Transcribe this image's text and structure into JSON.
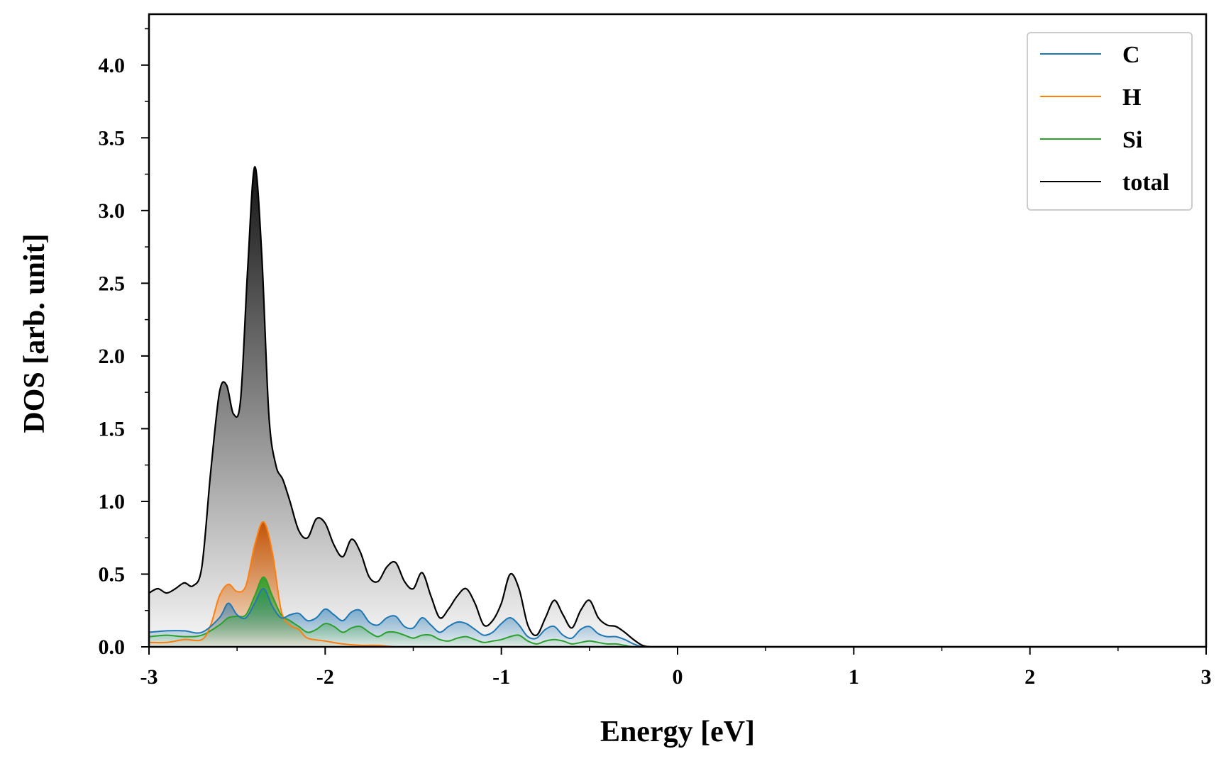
{
  "chart_data": {
    "type": "area",
    "title": "",
    "xlabel": "Energy [eV]",
    "ylabel": "DOS [arb. unit]",
    "xlim": [
      -3,
      3
    ],
    "ylim": [
      0,
      4.35
    ],
    "xticks": [
      -3,
      -2,
      -1,
      0,
      1,
      2,
      3
    ],
    "xtick_labels": [
      "-3",
      "-2",
      "-1",
      "0",
      "1",
      "2",
      "3"
    ],
    "yticks": [
      0.0,
      0.5,
      1.0,
      1.5,
      2.0,
      2.5,
      3.0,
      3.5,
      4.0
    ],
    "ytick_labels": [
      "0.0",
      "0.5",
      "1.0",
      "1.5",
      "2.0",
      "2.5",
      "3.0",
      "3.5",
      "4.0"
    ],
    "grid": false,
    "legend_position": "top-right",
    "colors": {
      "C": "#1f77b4",
      "H": "#ff7f0e",
      "Si": "#2ca02c",
      "total": "#000000"
    },
    "series": [
      {
        "name": "total",
        "x": [
          -3.0,
          -2.95,
          -2.9,
          -2.85,
          -2.8,
          -2.75,
          -2.7,
          -2.65,
          -2.6,
          -2.56,
          -2.52,
          -2.48,
          -2.44,
          -2.4,
          -2.36,
          -2.32,
          -2.28,
          -2.24,
          -2.2,
          -2.15,
          -2.1,
          -2.05,
          -2.0,
          -1.95,
          -1.9,
          -1.85,
          -1.8,
          -1.75,
          -1.7,
          -1.65,
          -1.6,
          -1.55,
          -1.5,
          -1.45,
          -1.4,
          -1.35,
          -1.3,
          -1.25,
          -1.2,
          -1.15,
          -1.1,
          -1.05,
          -1.0,
          -0.95,
          -0.9,
          -0.85,
          -0.8,
          -0.75,
          -0.7,
          -0.65,
          -0.6,
          -0.55,
          -0.5,
          -0.45,
          -0.4,
          -0.35,
          -0.3,
          -0.25,
          -0.2,
          -0.15,
          -0.1,
          0.0,
          1.0,
          3.0
        ],
        "values": [
          0.37,
          0.4,
          0.37,
          0.4,
          0.44,
          0.42,
          0.55,
          1.2,
          1.75,
          1.8,
          1.6,
          1.7,
          2.6,
          3.3,
          2.7,
          1.6,
          1.25,
          1.15,
          1.0,
          0.8,
          0.75,
          0.88,
          0.85,
          0.7,
          0.62,
          0.74,
          0.65,
          0.48,
          0.45,
          0.55,
          0.58,
          0.45,
          0.4,
          0.51,
          0.35,
          0.2,
          0.26,
          0.35,
          0.4,
          0.3,
          0.15,
          0.18,
          0.3,
          0.5,
          0.4,
          0.15,
          0.08,
          0.2,
          0.32,
          0.22,
          0.13,
          0.25,
          0.32,
          0.2,
          0.15,
          0.14,
          0.1,
          0.05,
          0.01,
          0.0,
          0.0,
          0.0,
          0.0,
          0.0
        ]
      },
      {
        "name": "C",
        "x": [
          -3.0,
          -2.9,
          -2.8,
          -2.7,
          -2.6,
          -2.55,
          -2.5,
          -2.45,
          -2.4,
          -2.35,
          -2.3,
          -2.25,
          -2.2,
          -2.15,
          -2.1,
          -2.05,
          -2.0,
          -1.95,
          -1.9,
          -1.85,
          -1.8,
          -1.75,
          -1.7,
          -1.65,
          -1.6,
          -1.55,
          -1.5,
          -1.45,
          -1.4,
          -1.35,
          -1.3,
          -1.25,
          -1.2,
          -1.15,
          -1.1,
          -1.05,
          -1.0,
          -0.95,
          -0.9,
          -0.85,
          -0.8,
          -0.75,
          -0.7,
          -0.65,
          -0.6,
          -0.55,
          -0.5,
          -0.45,
          -0.4,
          -0.35,
          -0.3,
          -0.25,
          -0.2,
          -0.15,
          -0.1,
          0.0,
          3.0
        ],
        "values": [
          0.1,
          0.11,
          0.11,
          0.1,
          0.2,
          0.3,
          0.22,
          0.2,
          0.3,
          0.4,
          0.28,
          0.2,
          0.22,
          0.23,
          0.18,
          0.2,
          0.26,
          0.22,
          0.18,
          0.24,
          0.25,
          0.17,
          0.15,
          0.2,
          0.21,
          0.14,
          0.13,
          0.2,
          0.15,
          0.1,
          0.14,
          0.17,
          0.16,
          0.12,
          0.08,
          0.1,
          0.16,
          0.2,
          0.15,
          0.07,
          0.06,
          0.12,
          0.14,
          0.08,
          0.06,
          0.12,
          0.14,
          0.09,
          0.07,
          0.07,
          0.05,
          0.02,
          0.0,
          0.0,
          0.0,
          0.0,
          0.0
        ]
      },
      {
        "name": "H",
        "x": [
          -3.0,
          -2.9,
          -2.8,
          -2.7,
          -2.65,
          -2.6,
          -2.55,
          -2.5,
          -2.45,
          -2.4,
          -2.35,
          -2.3,
          -2.25,
          -2.2,
          -2.15,
          -2.1,
          -2.0,
          -1.9,
          -1.8,
          -1.7,
          -1.6,
          -1.5,
          -1.0,
          3.0
        ],
        "values": [
          0.03,
          0.03,
          0.05,
          0.05,
          0.15,
          0.35,
          0.43,
          0.38,
          0.42,
          0.7,
          0.86,
          0.65,
          0.25,
          0.15,
          0.12,
          0.06,
          0.04,
          0.02,
          0.01,
          0.01,
          0.0,
          0.0,
          0.0,
          0.0
        ]
      },
      {
        "name": "Si",
        "x": [
          -3.0,
          -2.9,
          -2.8,
          -2.7,
          -2.6,
          -2.55,
          -2.5,
          -2.45,
          -2.4,
          -2.35,
          -2.3,
          -2.25,
          -2.2,
          -2.15,
          -2.1,
          -2.05,
          -2.0,
          -1.95,
          -1.9,
          -1.85,
          -1.8,
          -1.75,
          -1.7,
          -1.65,
          -1.6,
          -1.55,
          -1.5,
          -1.45,
          -1.4,
          -1.35,
          -1.3,
          -1.25,
          -1.2,
          -1.15,
          -1.1,
          -1.05,
          -1.0,
          -0.95,
          -0.9,
          -0.85,
          -0.8,
          -0.75,
          -0.7,
          -0.65,
          -0.6,
          -0.55,
          -0.5,
          -0.45,
          -0.4,
          -0.35,
          -0.3,
          -0.25,
          -0.2,
          0.0,
          3.0
        ],
        "values": [
          0.07,
          0.08,
          0.07,
          0.08,
          0.15,
          0.2,
          0.21,
          0.22,
          0.35,
          0.48,
          0.35,
          0.22,
          0.18,
          0.14,
          0.1,
          0.12,
          0.16,
          0.14,
          0.1,
          0.13,
          0.14,
          0.1,
          0.07,
          0.1,
          0.1,
          0.08,
          0.06,
          0.08,
          0.08,
          0.05,
          0.04,
          0.06,
          0.07,
          0.05,
          0.03,
          0.04,
          0.05,
          0.07,
          0.08,
          0.04,
          0.02,
          0.04,
          0.05,
          0.04,
          0.02,
          0.03,
          0.04,
          0.03,
          0.02,
          0.02,
          0.01,
          0.0,
          0.0,
          0.0,
          0.0
        ]
      }
    ],
    "legend_order": [
      "C",
      "H",
      "Si",
      "total"
    ],
    "fill_order": [
      "total",
      "H",
      "C",
      "Si"
    ]
  }
}
